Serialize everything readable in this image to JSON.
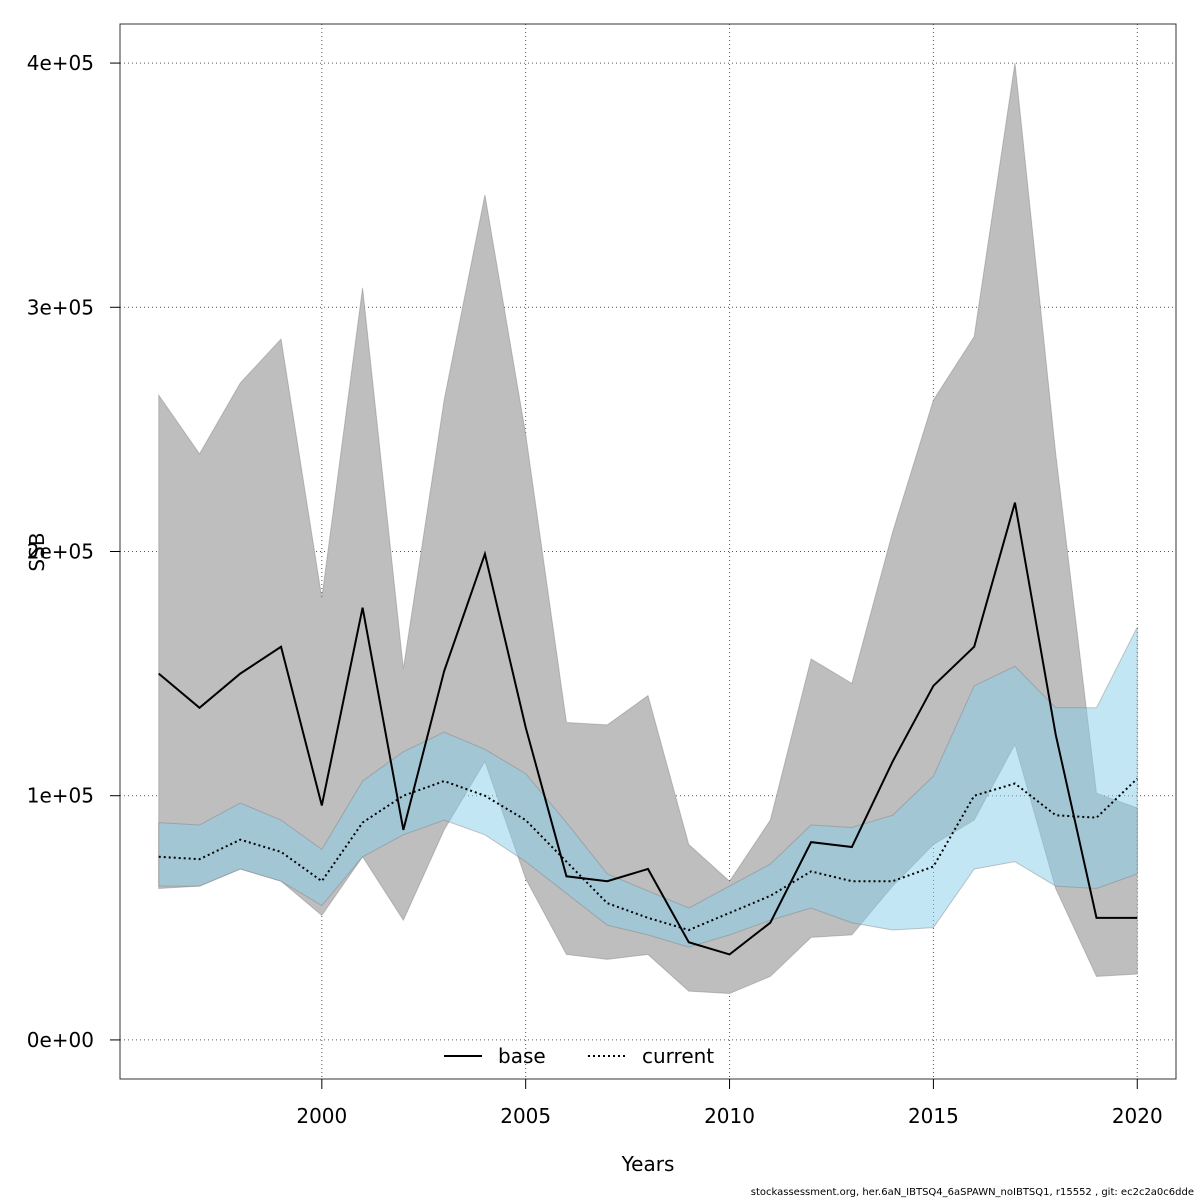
{
  "chart_data": {
    "type": "line",
    "title": "",
    "xlabel": "Years",
    "ylabel": "SSB",
    "xlim": [
      1995.05,
      2020.95
    ],
    "ylim": [
      -16000,
      416000
    ],
    "x_ticks": [
      2000,
      2005,
      2010,
      2015,
      2020
    ],
    "y_ticks": [
      0,
      100000,
      200000,
      300000,
      400000
    ],
    "x_tick_labels": [
      "2000",
      "2005",
      "2010",
      "2015",
      "2020"
    ],
    "y_tick_labels": [
      "0e+00",
      "1e+05",
      "2e+05",
      "3e+05",
      "4e+05"
    ],
    "grid": true,
    "legend_position": "bottom",
    "x": [
      1996,
      1997,
      1998,
      1999,
      2000,
      2001,
      2002,
      2003,
      2004,
      2005,
      2006,
      2007,
      2008,
      2009,
      2010,
      2011,
      2012,
      2013,
      2014,
      2015,
      2016,
      2017,
      2018,
      2019,
      2020
    ],
    "series": [
      {
        "name": "base",
        "style": "solid",
        "color": "#000000",
        "values": [
          150000,
          136000,
          150000,
          161000,
          96000,
          177000,
          86000,
          151000,
          199000,
          128000,
          67000,
          65000,
          70000,
          40000,
          35000,
          48000,
          81000,
          79000,
          114000,
          145000,
          161000,
          220000,
          125000,
          50000,
          50000
        ],
        "lower": [
          62000,
          63000,
          70000,
          65000,
          51000,
          75000,
          49000,
          86000,
          114000,
          66000,
          35000,
          33000,
          35000,
          20000,
          19000,
          26000,
          42000,
          43000,
          63000,
          80000,
          90000,
          121000,
          62000,
          26000,
          27000
        ],
        "upper": [
          264000,
          240000,
          269000,
          287000,
          181000,
          308000,
          152000,
          262000,
          346000,
          248000,
          130000,
          129000,
          141000,
          80000,
          65000,
          90000,
          156000,
          146000,
          208000,
          262000,
          288000,
          400000,
          240000,
          101000,
          95000
        ],
        "band_color": "#bebebe"
      },
      {
        "name": "current",
        "style": "dotted",
        "color": "#000000",
        "values": [
          75000,
          74000,
          82000,
          77000,
          65000,
          89000,
          100000,
          106000,
          100000,
          90000,
          73000,
          56000,
          50000,
          45000,
          52000,
          59000,
          69000,
          65000,
          65000,
          71000,
          100000,
          105000,
          92000,
          91000,
          107000
        ],
        "lower": [
          63000,
          63000,
          70000,
          65000,
          55000,
          75000,
          84000,
          90000,
          84000,
          73000,
          60000,
          47000,
          43000,
          38000,
          43000,
          49000,
          54000,
          48000,
          45000,
          46000,
          70000,
          73000,
          63000,
          62000,
          68000
        ],
        "upper": [
          89000,
          88000,
          97000,
          90000,
          78000,
          106000,
          118000,
          126000,
          119000,
          109000,
          89000,
          68000,
          61000,
          54000,
          63000,
          72000,
          88000,
          87000,
          92000,
          108000,
          145000,
          153000,
          136000,
          136000,
          169000
        ],
        "band_color": "#87ceeb"
      }
    ]
  },
  "footnote": "stockassessment.org, her.6aN_IBTSQ4_6aSPAWN_noIBTSQ1, r15552 , git: ec2c2a0c6dde"
}
